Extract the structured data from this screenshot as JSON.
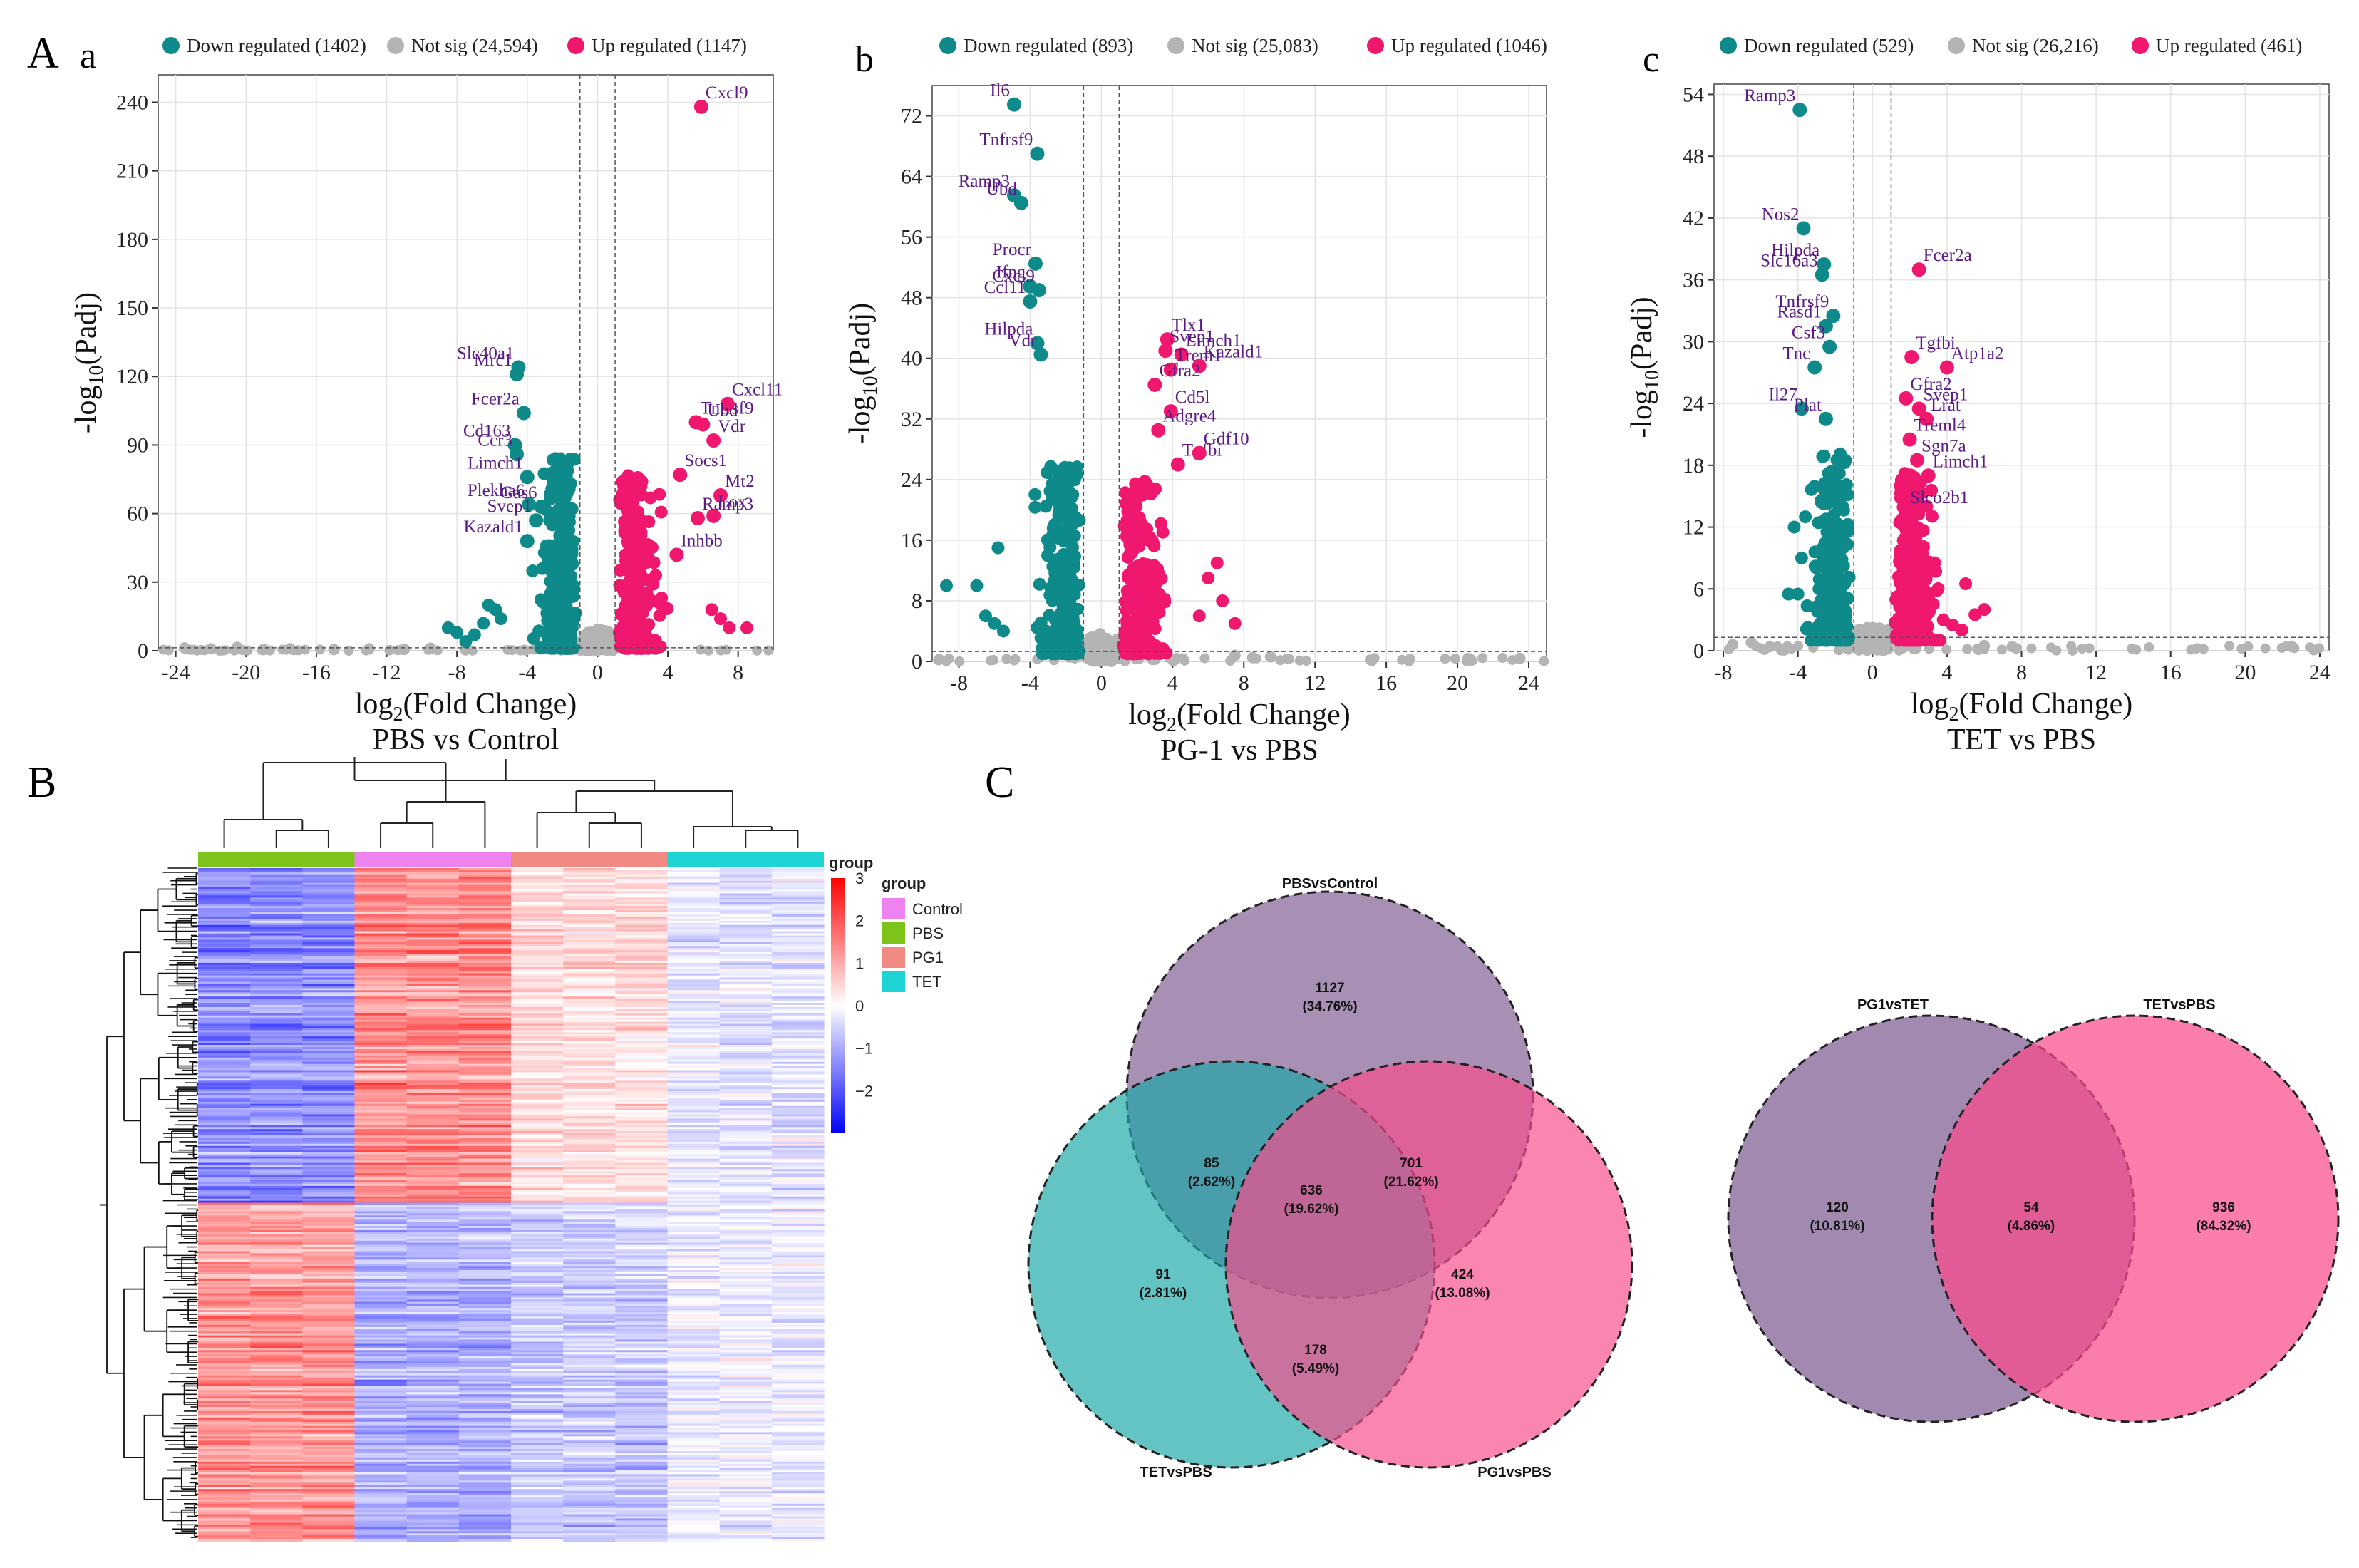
{
  "panel_labels": {
    "A": "A",
    "a": "a",
    "b": "b",
    "c": "c",
    "B": "B",
    "C": "C"
  },
  "colors": {
    "down": "#0e8a8a",
    "notsig": "#b4b4b4",
    "up": "#f0176e",
    "gene": "#5b1a86",
    "control": "#ee82ee",
    "pbs": "#7cc41a",
    "pg1": "#f08a82",
    "tet": "#1ed4d4"
  },
  "chart_data": [
    {
      "type": "scatter",
      "id": "volcano_a",
      "title": "PBS vs Control",
      "xlabel_main": "log",
      "xlabel_sub": "2",
      "xlabel_tail": "(Fold Change)",
      "ylabel_main": "-log",
      "ylabel_sub": "10",
      "ylabel_tail": "(Padj)",
      "xlim": [
        -25,
        10
      ],
      "ylim": [
        0,
        252
      ],
      "xticks": [
        -24,
        -20,
        -16,
        -12,
        -8,
        -4,
        0,
        4,
        8
      ],
      "yticks": [
        0,
        30,
        60,
        90,
        120,
        150,
        180,
        210,
        240
      ],
      "fc_threshold": 1,
      "p_threshold": 1.3,
      "legend": [
        "Down regulated (1402)",
        "Not sig (24,594)",
        "Up regulated (1147)"
      ],
      "notsig_extra": [
        [
          -23.5,
          1.2
        ],
        [
          -22,
          0.8
        ],
        [
          -20.5,
          1.5
        ],
        [
          -19,
          0.6
        ],
        [
          -17.5,
          0.9
        ],
        [
          -15,
          0.5
        ],
        [
          -13,
          0.8
        ],
        [
          -11,
          0.6
        ],
        [
          -9.5,
          1.1
        ]
      ],
      "down_extra": [
        [
          -8.5,
          10
        ],
        [
          -8,
          8
        ],
        [
          -7.5,
          4
        ],
        [
          -6.5,
          12
        ],
        [
          -7,
          7
        ],
        [
          -5.8,
          18
        ],
        [
          -6.2,
          20
        ],
        [
          -5.5,
          14
        ]
      ],
      "up_extra": [
        [
          7.5,
          10
        ],
        [
          8.5,
          10
        ],
        [
          7,
          14
        ],
        [
          6.5,
          18
        ]
      ],
      "genes": [
        {
          "name": "Cxcl9",
          "x": 5.9,
          "y": 238,
          "dir": "up"
        },
        {
          "name": "Tnfrsf9",
          "x": 5.6,
          "y": 100,
          "dir": "up"
        },
        {
          "name": "Cxcl11",
          "x": 7.4,
          "y": 108,
          "dir": "up"
        },
        {
          "name": "Ubd",
          "x": 6.0,
          "y": 99,
          "dir": "up"
        },
        {
          "name": "Vdr",
          "x": 6.6,
          "y": 92,
          "dir": "up"
        },
        {
          "name": "Socs1",
          "x": 4.7,
          "y": 77,
          "dir": "up"
        },
        {
          "name": "Mt2",
          "x": 7.0,
          "y": 68,
          "dir": "up"
        },
        {
          "name": "Lox",
          "x": 6.6,
          "y": 59,
          "dir": "up"
        },
        {
          "name": "Ramp3",
          "x": 5.7,
          "y": 58,
          "dir": "up"
        },
        {
          "name": "Inhbb",
          "x": 4.5,
          "y": 42,
          "dir": "up"
        },
        {
          "name": "Slc40a1",
          "x": -4.5,
          "y": 124,
          "dir": "down"
        },
        {
          "name": "Mrc1",
          "x": -4.6,
          "y": 121,
          "dir": "down"
        },
        {
          "name": "Fcer2a",
          "x": -4.2,
          "y": 104,
          "dir": "down"
        },
        {
          "name": "Cd163",
          "x": -4.7,
          "y": 90,
          "dir": "down"
        },
        {
          "name": "Ccr3",
          "x": -4.6,
          "y": 86,
          "dir": "down"
        },
        {
          "name": "Limch1",
          "x": -4.0,
          "y": 76,
          "dir": "down"
        },
        {
          "name": "Plekha6",
          "x": -3.9,
          "y": 64,
          "dir": "down"
        },
        {
          "name": "Gas6",
          "x": -3.2,
          "y": 63,
          "dir": "down"
        },
        {
          "name": "Svep1",
          "x": -3.5,
          "y": 57,
          "dir": "down"
        },
        {
          "name": "Kazald1",
          "x": -4.0,
          "y": 48,
          "dir": "down"
        }
      ]
    },
    {
      "type": "scatter",
      "id": "volcano_b",
      "title": "PG-1 vs PBS",
      "xlabel_main": "log",
      "xlabel_sub": "2",
      "xlabel_tail": "(Fold Change)",
      "ylabel_main": "-log",
      "ylabel_sub": "10",
      "ylabel_tail": "(Padj)",
      "xlim": [
        -9.5,
        25
      ],
      "ylim": [
        0,
        76
      ],
      "xticks": [
        -8,
        -4,
        0,
        4,
        8,
        12,
        16,
        20,
        24
      ],
      "yticks": [
        0,
        8,
        16,
        24,
        32,
        40,
        48,
        56,
        64,
        72
      ],
      "fc_threshold": 1,
      "p_threshold": 1.3,
      "legend": [
        "Down regulated (893)",
        "Not sig (25,083)",
        "Up regulated (1046)"
      ],
      "notsig_extra": [
        [
          8.5,
          0.5
        ],
        [
          9.5,
          0.6
        ],
        [
          23.5,
          0.4
        ],
        [
          7.5,
          0.8
        ]
      ],
      "down_extra": [
        [
          -8.7,
          10
        ],
        [
          -7,
          10
        ],
        [
          -6,
          5
        ],
        [
          -5.5,
          4
        ],
        [
          -6.5,
          6
        ],
        [
          -5.8,
          15
        ]
      ],
      "up_extra": [
        [
          6.5,
          13
        ],
        [
          7.5,
          5
        ],
        [
          6.8,
          8
        ],
        [
          6,
          11
        ],
        [
          5.5,
          6
        ]
      ],
      "genes": [
        {
          "name": "Il6",
          "x": -4.9,
          "y": 73.5,
          "dir": "down"
        },
        {
          "name": "Tnfrsf9",
          "x": -3.6,
          "y": 67,
          "dir": "down"
        },
        {
          "name": "Ramp3",
          "x": -4.9,
          "y": 61.5,
          "dir": "down"
        },
        {
          "name": "Ubd",
          "x": -4.5,
          "y": 60.5,
          "dir": "down"
        },
        {
          "name": "Procr",
          "x": -3.7,
          "y": 52.5,
          "dir": "down"
        },
        {
          "name": "Ifng",
          "x": -4.0,
          "y": 49.5,
          "dir": "down"
        },
        {
          "name": "Ccl11",
          "x": -4.0,
          "y": 47.5,
          "dir": "down"
        },
        {
          "name": "Cxcl9",
          "x": -3.5,
          "y": 49,
          "dir": "down"
        },
        {
          "name": "Hilpda",
          "x": -3.6,
          "y": 42,
          "dir": "down"
        },
        {
          "name": "Vdr",
          "x": -3.4,
          "y": 40.5,
          "dir": "down"
        },
        {
          "name": "Tlx1",
          "x": 3.7,
          "y": 42.5,
          "dir": "up"
        },
        {
          "name": "Svep1",
          "x": 3.6,
          "y": 41,
          "dir": "up"
        },
        {
          "name": "Limch1",
          "x": 4.5,
          "y": 40.5,
          "dir": "up"
        },
        {
          "name": "Trem1",
          "x": 3.9,
          "y": 38.5,
          "dir": "up"
        },
        {
          "name": "Kazald1",
          "x": 5.5,
          "y": 39,
          "dir": "up"
        },
        {
          "name": "Gfra2",
          "x": 3.0,
          "y": 36.5,
          "dir": "up"
        },
        {
          "name": "Cd5l",
          "x": 3.9,
          "y": 33,
          "dir": "up"
        },
        {
          "name": "Adgre4",
          "x": 3.2,
          "y": 30.5,
          "dir": "up"
        },
        {
          "name": "Tgfbi",
          "x": 4.3,
          "y": 26,
          "dir": "up"
        },
        {
          "name": "Gdf10",
          "x": 5.5,
          "y": 27.5,
          "dir": "up"
        }
      ]
    },
    {
      "type": "scatter",
      "id": "volcano_c",
      "title": "TET vs PBS",
      "xlabel_main": "log",
      "xlabel_sub": "2",
      "xlabel_tail": "(Fold Change)",
      "ylabel_main": "-log",
      "ylabel_sub": "10",
      "ylabel_tail": "(Padj)",
      "xlim": [
        -8.5,
        24.5
      ],
      "ylim": [
        0,
        55
      ],
      "xticks": [
        -8,
        -4,
        0,
        4,
        8,
        12,
        16,
        20,
        24
      ],
      "yticks": [
        0,
        6,
        12,
        18,
        24,
        30,
        36,
        42,
        48,
        54
      ],
      "fc_threshold": 1,
      "p_threshold": 1.3,
      "legend": [
        "Down regulated (529)",
        "Not sig (26,216)",
        "Up regulated (461)"
      ],
      "notsig_extra": [
        [
          -7.5,
          0.6
        ],
        [
          -6.5,
          0.8
        ],
        [
          -5.5,
          0.4
        ],
        [
          6,
          0.5
        ],
        [
          7.5,
          0.4
        ],
        [
          22.5,
          0.4
        ]
      ],
      "down_extra": [
        [
          -4,
          5.5
        ],
        [
          -4.5,
          5.5
        ],
        [
          -3.8,
          9
        ],
        [
          -4.2,
          12
        ],
        [
          -3.6,
          13
        ]
      ],
      "up_extra": [
        [
          5,
          6.5
        ],
        [
          6,
          4
        ],
        [
          5.5,
          3.5
        ],
        [
          4.3,
          2.5
        ],
        [
          4.8,
          2
        ],
        [
          3.8,
          3
        ]
      ],
      "genes": [
        {
          "name": "Ramp3",
          "x": -3.9,
          "y": 52.5,
          "dir": "down"
        },
        {
          "name": "Nos2",
          "x": -3.7,
          "y": 41,
          "dir": "down"
        },
        {
          "name": "Hilpda",
          "x": -2.6,
          "y": 37.5,
          "dir": "down"
        },
        {
          "name": "Slc16a3",
          "x": -2.7,
          "y": 36.5,
          "dir": "down"
        },
        {
          "name": "Tnfrsf9",
          "x": -2.1,
          "y": 32.5,
          "dir": "down"
        },
        {
          "name": "Rasd1",
          "x": -2.5,
          "y": 31.5,
          "dir": "down"
        },
        {
          "name": "Csf3",
          "x": -2.3,
          "y": 29.5,
          "dir": "down"
        },
        {
          "name": "Tnc",
          "x": -3.1,
          "y": 27.5,
          "dir": "down"
        },
        {
          "name": "Il27",
          "x": -3.8,
          "y": 23.5,
          "dir": "down"
        },
        {
          "name": "Plat",
          "x": -2.5,
          "y": 22.5,
          "dir": "down"
        },
        {
          "name": "Fcer2a",
          "x": 2.5,
          "y": 37,
          "dir": "up"
        },
        {
          "name": "Tgfbi",
          "x": 2.1,
          "y": 28.5,
          "dir": "up"
        },
        {
          "name": "Atp1a2",
          "x": 4.0,
          "y": 27.5,
          "dir": "up"
        },
        {
          "name": "Gfra2",
          "x": 1.8,
          "y": 24.5,
          "dir": "up"
        },
        {
          "name": "Svep1",
          "x": 2.5,
          "y": 23.5,
          "dir": "up"
        },
        {
          "name": "Lrat",
          "x": 2.9,
          "y": 22.5,
          "dir": "up"
        },
        {
          "name": "Treml4",
          "x": 2.0,
          "y": 20.5,
          "dir": "up"
        },
        {
          "name": "Sgn7a",
          "x": 2.4,
          "y": 18.5,
          "dir": "up"
        },
        {
          "name": "Limch1",
          "x": 3.0,
          "y": 17,
          "dir": "up"
        },
        {
          "name": "Slco2b1",
          "x": 1.8,
          "y": 13.5,
          "dir": "up"
        }
      ]
    },
    {
      "type": "heatmap",
      "id": "heatmap_B",
      "group_label": "group",
      "column_groups": [
        "PBS",
        "Control",
        "PG1",
        "TET"
      ],
      "legend_groups": [
        "Control",
        "PBS",
        "PG1",
        "TET"
      ],
      "scale_range": [
        -3,
        3
      ],
      "scale_ticks": [
        3,
        2,
        1,
        0,
        -1,
        -2
      ],
      "scale_labels": [
        "3",
        "2",
        "1",
        "0",
        "−1",
        "−2"
      ],
      "n_columns": 12,
      "n_rows": 320
    },
    {
      "type": "venn",
      "id": "venn_C1",
      "sets": [
        "PBSvsControl",
        "TETvsPBS",
        "PG1vsPBS"
      ],
      "regions": [
        {
          "sets": [
            "PBSvsControl"
          ],
          "count": "1127",
          "pct": "(34.76%)"
        },
        {
          "sets": [
            "PBSvsControl",
            "TETvsPBS"
          ],
          "count": "85",
          "pct": "(2.62%)"
        },
        {
          "sets": [
            "PBSvsControl",
            "PG1vsPBS"
          ],
          "count": "701",
          "pct": "(21.62%)"
        },
        {
          "sets": [
            "PBSvsControl",
            "TETvsPBS",
            "PG1vsPBS"
          ],
          "count": "636",
          "pct": "(19.62%)"
        },
        {
          "sets": [
            "TETvsPBS"
          ],
          "count": "91",
          "pct": "(2.81%)"
        },
        {
          "sets": [
            "PG1vsPBS"
          ],
          "count": "424",
          "pct": "(13.08%)"
        },
        {
          "sets": [
            "TETvsPBS",
            "PG1vsPBS"
          ],
          "count": "178",
          "pct": "(5.49%)"
        }
      ]
    },
    {
      "type": "venn",
      "id": "venn_C2",
      "sets": [
        "PG1vsTET",
        "TETvsPBS"
      ],
      "regions": [
        {
          "sets": [
            "PG1vsTET"
          ],
          "count": "120",
          "pct": "(10.81%)"
        },
        {
          "sets": [
            "PG1vsTET",
            "TETvsPBS"
          ],
          "count": "54",
          "pct": "(4.86%)"
        },
        {
          "sets": [
            "TETvsPBS"
          ],
          "count": "936",
          "pct": "(84.32%)"
        }
      ]
    }
  ]
}
